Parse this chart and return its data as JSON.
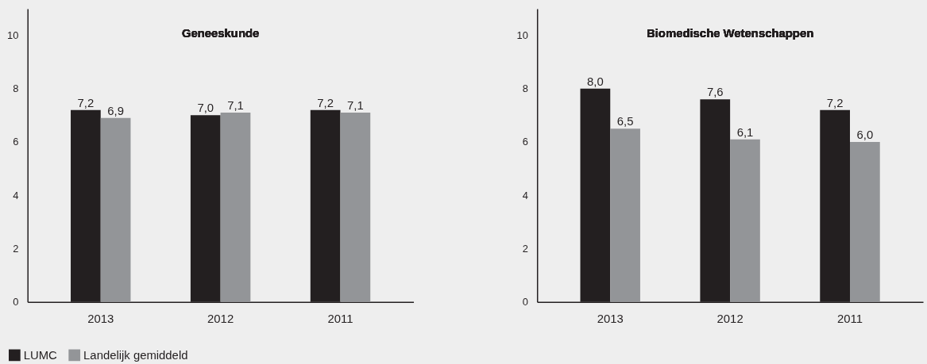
{
  "chart_data": [
    {
      "type": "bar",
      "title": "Geneeskunde",
      "categories": [
        "2013",
        "2012",
        "2011"
      ],
      "ylim": [
        0,
        11
      ],
      "yticks": [
        0,
        2,
        4,
        6,
        8,
        10
      ],
      "legend": "bottom left",
      "series": [
        {
          "name": "LUMC",
          "color": "#231f20",
          "values": [
            7.2,
            7.0,
            7.2
          ],
          "value_labels": [
            "7,2",
            "7,0",
            "7,2"
          ]
        },
        {
          "name": "Landelijk gemiddeld",
          "color": "#939598",
          "values": [
            6.9,
            7.1,
            7.1
          ],
          "value_labels": [
            "6,9",
            "7,1",
            "7,1"
          ]
        }
      ]
    },
    {
      "type": "bar",
      "title": "Biomedische Wetenschappen",
      "categories": [
        "2013",
        "2012",
        "2011"
      ],
      "ylim": [
        0,
        11
      ],
      "yticks": [
        0,
        2,
        4,
        6,
        8,
        10
      ],
      "series": [
        {
          "name": "LUMC",
          "color": "#231f20",
          "values": [
            8.0,
            7.6,
            7.2
          ],
          "value_labels": [
            "8,0",
            "7,6",
            "7,2"
          ]
        },
        {
          "name": "Landelijk gemiddeld",
          "color": "#939598",
          "values": [
            6.5,
            6.1,
            6.0
          ],
          "value_labels": [
            "6,5",
            "6,1",
            "6,0"
          ]
        }
      ]
    }
  ]
}
